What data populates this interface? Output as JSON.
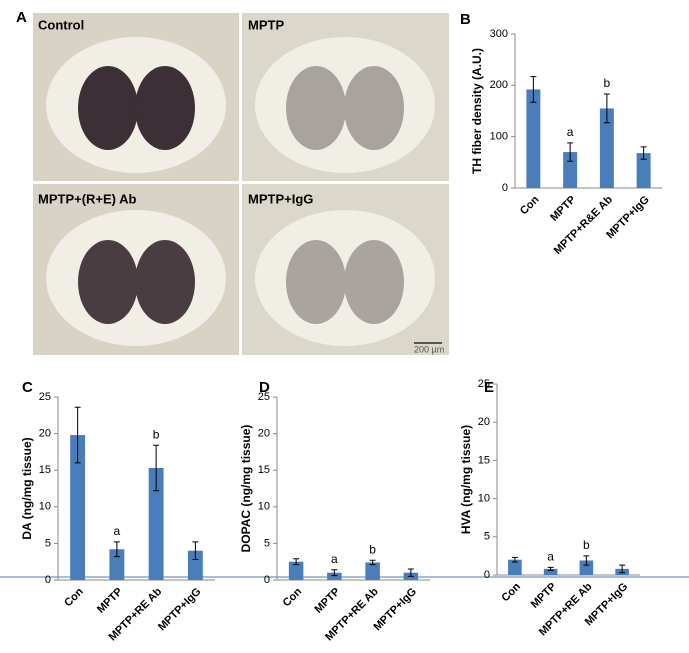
{
  "micrographs": {
    "panel": "A",
    "images": [
      "Control",
      "MPTP",
      "MPTP+(R+E) Ab",
      "MPTP+IgG"
    ],
    "scale_bar": "200 µm"
  },
  "chart_data": [
    {
      "type": "bar",
      "panel": "B",
      "y_label": "TH fiber density (A.U.)",
      "categories": [
        "Con",
        "MPTP",
        "MPTP+R&E Ab",
        "MPTP+IgG"
      ],
      "values": [
        192,
        70,
        155,
        68
      ],
      "errors": [
        25,
        18,
        28,
        12
      ],
      "bar_labels": [
        null,
        "a",
        "b",
        null
      ],
      "color": "#4a7ebb",
      "ylim": [
        0,
        300
      ],
      "yticks": [
        0,
        100,
        200,
        300
      ]
    },
    {
      "type": "bar",
      "panel": "C",
      "y_label": "DA (ng/mg tissue)",
      "categories": [
        "Con",
        "MPTP",
        "MPTP+RE Ab",
        "MPTP+IgG"
      ],
      "values": [
        19.8,
        4.2,
        15.3,
        4.0
      ],
      "errors": [
        3.8,
        1.0,
        3.1,
        1.2
      ],
      "bar_labels": [
        null,
        "a",
        "b",
        null
      ],
      "color": "#4a7ebb",
      "ylim": [
        0,
        25
      ],
      "yticks": [
        0,
        5,
        10,
        15,
        20,
        25
      ]
    },
    {
      "type": "bar",
      "panel": "D",
      "y_label": "DOPAC (ng/mg tissue)",
      "categories": [
        "Con",
        "MPTP",
        "MPTP+RE Ab",
        "MPTP+IgG"
      ],
      "values": [
        2.5,
        1.0,
        2.4,
        1.0
      ],
      "errors": [
        0.4,
        0.4,
        0.3,
        0.5
      ],
      "bar_labels": [
        null,
        "a",
        "b",
        null
      ],
      "color": "#4a7ebb",
      "ylim": [
        0,
        25
      ],
      "yticks": [
        0,
        5,
        10,
        15,
        20,
        25
      ]
    },
    {
      "type": "bar",
      "panel": "E",
      "y_label": "HVA (ng/mg tissue)",
      "categories": [
        "Con",
        "MPTP",
        "MPTP+RE Ab",
        "MPTP+IgG"
      ],
      "values": [
        2.0,
        0.8,
        1.9,
        0.8
      ],
      "errors": [
        0.3,
        0.2,
        0.6,
        0.5
      ],
      "bar_labels": [
        null,
        "a",
        "b",
        null
      ],
      "color": "#4a7ebb",
      "ylim": [
        0,
        25
      ],
      "yticks": [
        0,
        5,
        10,
        15,
        20,
        25
      ]
    }
  ]
}
